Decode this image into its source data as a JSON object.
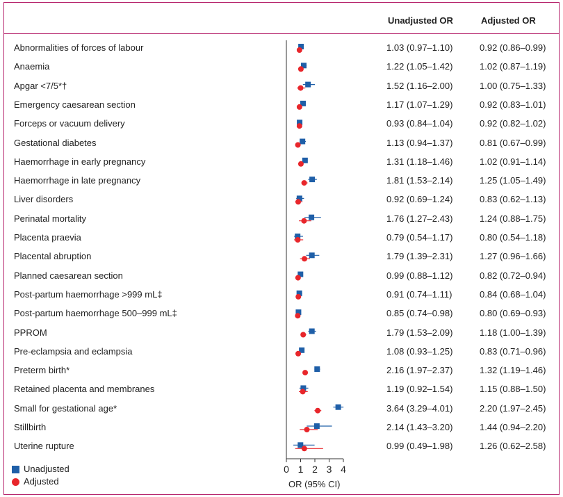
{
  "headers": {
    "unadjusted": "Unadjusted OR",
    "adjusted": "Adjusted OR"
  },
  "legend": {
    "unadjusted": "Unadjusted",
    "adjusted": "Adjusted"
  },
  "colors": {
    "unadjusted": "#1f5fa8",
    "adjusted": "#e8262b",
    "frame": "#b5226b"
  },
  "chart_data": {
    "type": "forest",
    "xlabel": "OR (95% CI)",
    "xlim": [
      0,
      4
    ],
    "xticks": [
      "0",
      "1",
      "2",
      "3",
      "4"
    ],
    "series": [
      {
        "name": "Unadjusted",
        "marker": "square"
      },
      {
        "name": "Adjusted",
        "marker": "circle"
      }
    ],
    "rows": [
      {
        "label": "Abnormalities of forces of labour",
        "u": [
          1.03,
          0.97,
          1.1
        ],
        "a": [
          0.92,
          0.86,
          0.99
        ],
        "u_text": "1.03 (0.97–1.10)",
        "a_text": "0.92 (0.86–0.99)"
      },
      {
        "label": "Anaemia",
        "u": [
          1.22,
          1.05,
          1.42
        ],
        "a": [
          1.02,
          0.87,
          1.19
        ],
        "u_text": "1.22 (1.05–1.42)",
        "a_text": "1.02 (0.87–1.19)"
      },
      {
        "label": "Apgar <7/5*†",
        "u": [
          1.52,
          1.16,
          2.0
        ],
        "a": [
          1.0,
          0.75,
          1.33
        ],
        "u_text": "1.52 (1.16–2.00)",
        "a_text": "1.00 (0.75–1.33)"
      },
      {
        "label": "Emergency caesarean section",
        "u": [
          1.17,
          1.07,
          1.29
        ],
        "a": [
          0.92,
          0.83,
          1.01
        ],
        "u_text": "1.17 (1.07–1.29)",
        "a_text": "0.92 (0.83–1.01)"
      },
      {
        "label": "Forceps or vacuum delivery",
        "u": [
          0.93,
          0.84,
          1.04
        ],
        "a": [
          0.92,
          0.82,
          1.02
        ],
        "u_text": "0.93 (0.84–1.04)",
        "a_text": "0.92 (0.82–1.02)"
      },
      {
        "label": "Gestational diabetes",
        "u": [
          1.13,
          0.94,
          1.37
        ],
        "a": [
          0.81,
          0.67,
          0.99
        ],
        "u_text": "1.13 (0.94–1.37)",
        "a_text": "0.81 (0.67–0.99)"
      },
      {
        "label": "Haemorrhage in early pregnancy",
        "u": [
          1.31,
          1.18,
          1.46
        ],
        "a": [
          1.02,
          0.91,
          1.14
        ],
        "u_text": "1.31 (1.18–1.46)",
        "a_text": "1.02 (0.91–1.14)"
      },
      {
        "label": "Haemorrhage in late pregnancy",
        "u": [
          1.81,
          1.53,
          2.14
        ],
        "a": [
          1.25,
          1.05,
          1.49
        ],
        "u_text": "1.81 (1.53–2.14)",
        "a_text": "1.25 (1.05–1.49)"
      },
      {
        "label": "Liver disorders",
        "u": [
          0.92,
          0.69,
          1.24
        ],
        "a": [
          0.83,
          0.62,
          1.13
        ],
        "u_text": "0.92 (0.69–1.24)",
        "a_text": "0.83 (0.62–1.13)"
      },
      {
        "label": "Perinatal mortality",
        "u": [
          1.76,
          1.27,
          2.43
        ],
        "a": [
          1.24,
          0.88,
          1.75
        ],
        "u_text": "1.76 (1.27–2.43)",
        "a_text": "1.24 (0.88–1.75)"
      },
      {
        "label": "Placenta praevia",
        "u": [
          0.79,
          0.54,
          1.17
        ],
        "a": [
          0.8,
          0.54,
          1.18
        ],
        "u_text": "0.79 (0.54–1.17)",
        "a_text": "0.80 (0.54–1.18)"
      },
      {
        "label": "Placental abruption",
        "u": [
          1.79,
          1.39,
          2.31
        ],
        "a": [
          1.27,
          0.96,
          1.66
        ],
        "u_text": "1.79 (1.39–2.31)",
        "a_text": "1.27 (0.96–1.66)"
      },
      {
        "label": "Planned caesarean section",
        "u": [
          0.99,
          0.88,
          1.12
        ],
        "a": [
          0.82,
          0.72,
          0.94
        ],
        "u_text": "0.99 (0.88–1.12)",
        "a_text": "0.82 (0.72–0.94)"
      },
      {
        "label": "Post-partum haemorrhage >999 mL‡",
        "u": [
          0.91,
          0.74,
          1.11
        ],
        "a": [
          0.84,
          0.68,
          1.04
        ],
        "u_text": "0.91 (0.74–1.11)",
        "a_text": "0.84 (0.68–1.04)"
      },
      {
        "label": "Post-partum haemorrhage 500–999 mL‡",
        "u": [
          0.85,
          0.74,
          0.98
        ],
        "a": [
          0.8,
          0.69,
          0.93
        ],
        "u_text": "0.85 (0.74–0.98)",
        "a_text": "0.80 (0.69–0.93)"
      },
      {
        "label": "PPROM",
        "u": [
          1.79,
          1.53,
          2.09
        ],
        "a": [
          1.18,
          1.0,
          1.39
        ],
        "u_text": "1.79 (1.53–2.09)",
        "a_text": "1.18 (1.00–1.39)"
      },
      {
        "label": "Pre-eclampsia and eclampsia",
        "u": [
          1.08,
          0.93,
          1.25
        ],
        "a": [
          0.83,
          0.71,
          0.96
        ],
        "u_text": "1.08 (0.93–1.25)",
        "a_text": "0.83 (0.71–0.96)"
      },
      {
        "label": "Preterm birth*",
        "u": [
          2.16,
          1.97,
          2.37
        ],
        "a": [
          1.32,
          1.19,
          1.46
        ],
        "u_text": "2.16 (1.97–2.37)",
        "a_text": "1.32 (1.19–1.46)"
      },
      {
        "label": "Retained placenta and membranes",
        "u": [
          1.19,
          0.92,
          1.54
        ],
        "a": [
          1.15,
          0.88,
          1.5
        ],
        "u_text": "1.19 (0.92–1.54)",
        "a_text": "1.15 (0.88–1.50)"
      },
      {
        "label": "Small for gestational age*",
        "u": [
          3.64,
          3.29,
          4.01
        ],
        "a": [
          2.2,
          1.97,
          2.45
        ],
        "u_text": "3.64 (3.29–4.01)",
        "a_text": "2.20 (1.97–2.45)"
      },
      {
        "label": "Stillbirth",
        "u": [
          2.14,
          1.43,
          3.2
        ],
        "a": [
          1.44,
          0.94,
          2.2
        ],
        "u_text": "2.14 (1.43–3.20)",
        "a_text": "1.44 (0.94–2.20)"
      },
      {
        "label": "Uterine rupture",
        "u": [
          0.99,
          0.49,
          1.98
        ],
        "a": [
          1.26,
          0.62,
          2.58
        ],
        "u_text": "0.99 (0.49–1.98)",
        "a_text": "1.26 (0.62–2.58)"
      }
    ]
  }
}
